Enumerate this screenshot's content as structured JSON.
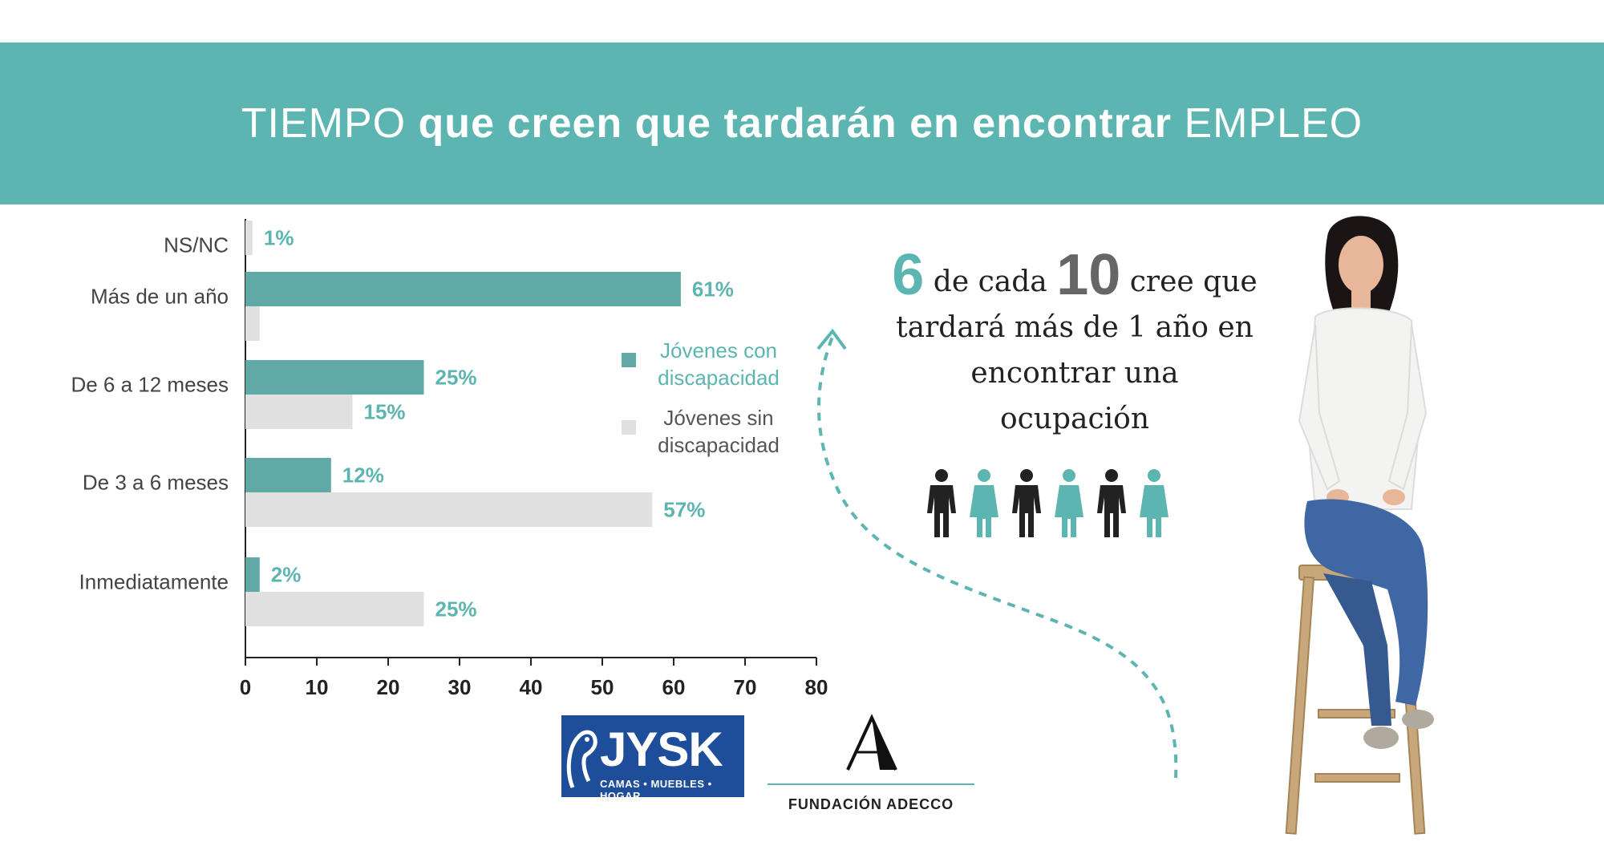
{
  "banner": {
    "title_part1": "TIEMPO",
    "title_part2": "que creen que tardarán en encontrar",
    "title_part3": "EMPLEO"
  },
  "colors": {
    "accent": "#5db5b1",
    "bar_con": "#60a9a6",
    "bar_sin": "#e0e0e0",
    "dark": "#222222"
  },
  "chart_data": {
    "type": "bar",
    "orientation": "horizontal",
    "categories": [
      "NS/NC",
      "Más de un año",
      "De 6 a 12 meses",
      "De 3 a 6 meses",
      "Inmediatamente"
    ],
    "series": [
      {
        "name": "Jóvenes con discapacidad",
        "values": [
          null,
          61,
          25,
          12,
          2
        ],
        "labels": [
          "",
          "61%",
          "25%",
          "12%",
          "2%"
        ]
      },
      {
        "name": "Jóvenes sin discapacidad",
        "values": [
          1,
          2,
          15,
          57,
          25
        ],
        "labels": [
          "1%",
          "",
          "15%",
          "57%",
          "25%"
        ]
      }
    ],
    "xlim": [
      0,
      80
    ],
    "xticks": [
      "0",
      "10",
      "20",
      "30",
      "40",
      "50",
      "60",
      "70",
      "80"
    ],
    "grid": false,
    "legend_position": "right"
  },
  "legend": {
    "con_line1": "Jóvenes con",
    "con_line2": "discapacidad",
    "sin_line1": "Jóvenes sin",
    "sin_line2": "discapacidad"
  },
  "callout": {
    "num1": "6",
    "text1": "de cada",
    "num2": "10",
    "text2": "cree que",
    "line2": "tardará más de 1 año en",
    "line3": "encontrar  una",
    "line4": "ocupación"
  },
  "people_icons": [
    "male-dark",
    "female-teal",
    "male-dark",
    "female-teal",
    "male-dark",
    "female-teal"
  ],
  "logos": {
    "jysk_word": "JYSK",
    "jysk_sub": "CAMAS • MUEBLES • HOGAR",
    "adecco_letter": "A",
    "adecco_name": "FUNDACIÓN ADECCO"
  }
}
